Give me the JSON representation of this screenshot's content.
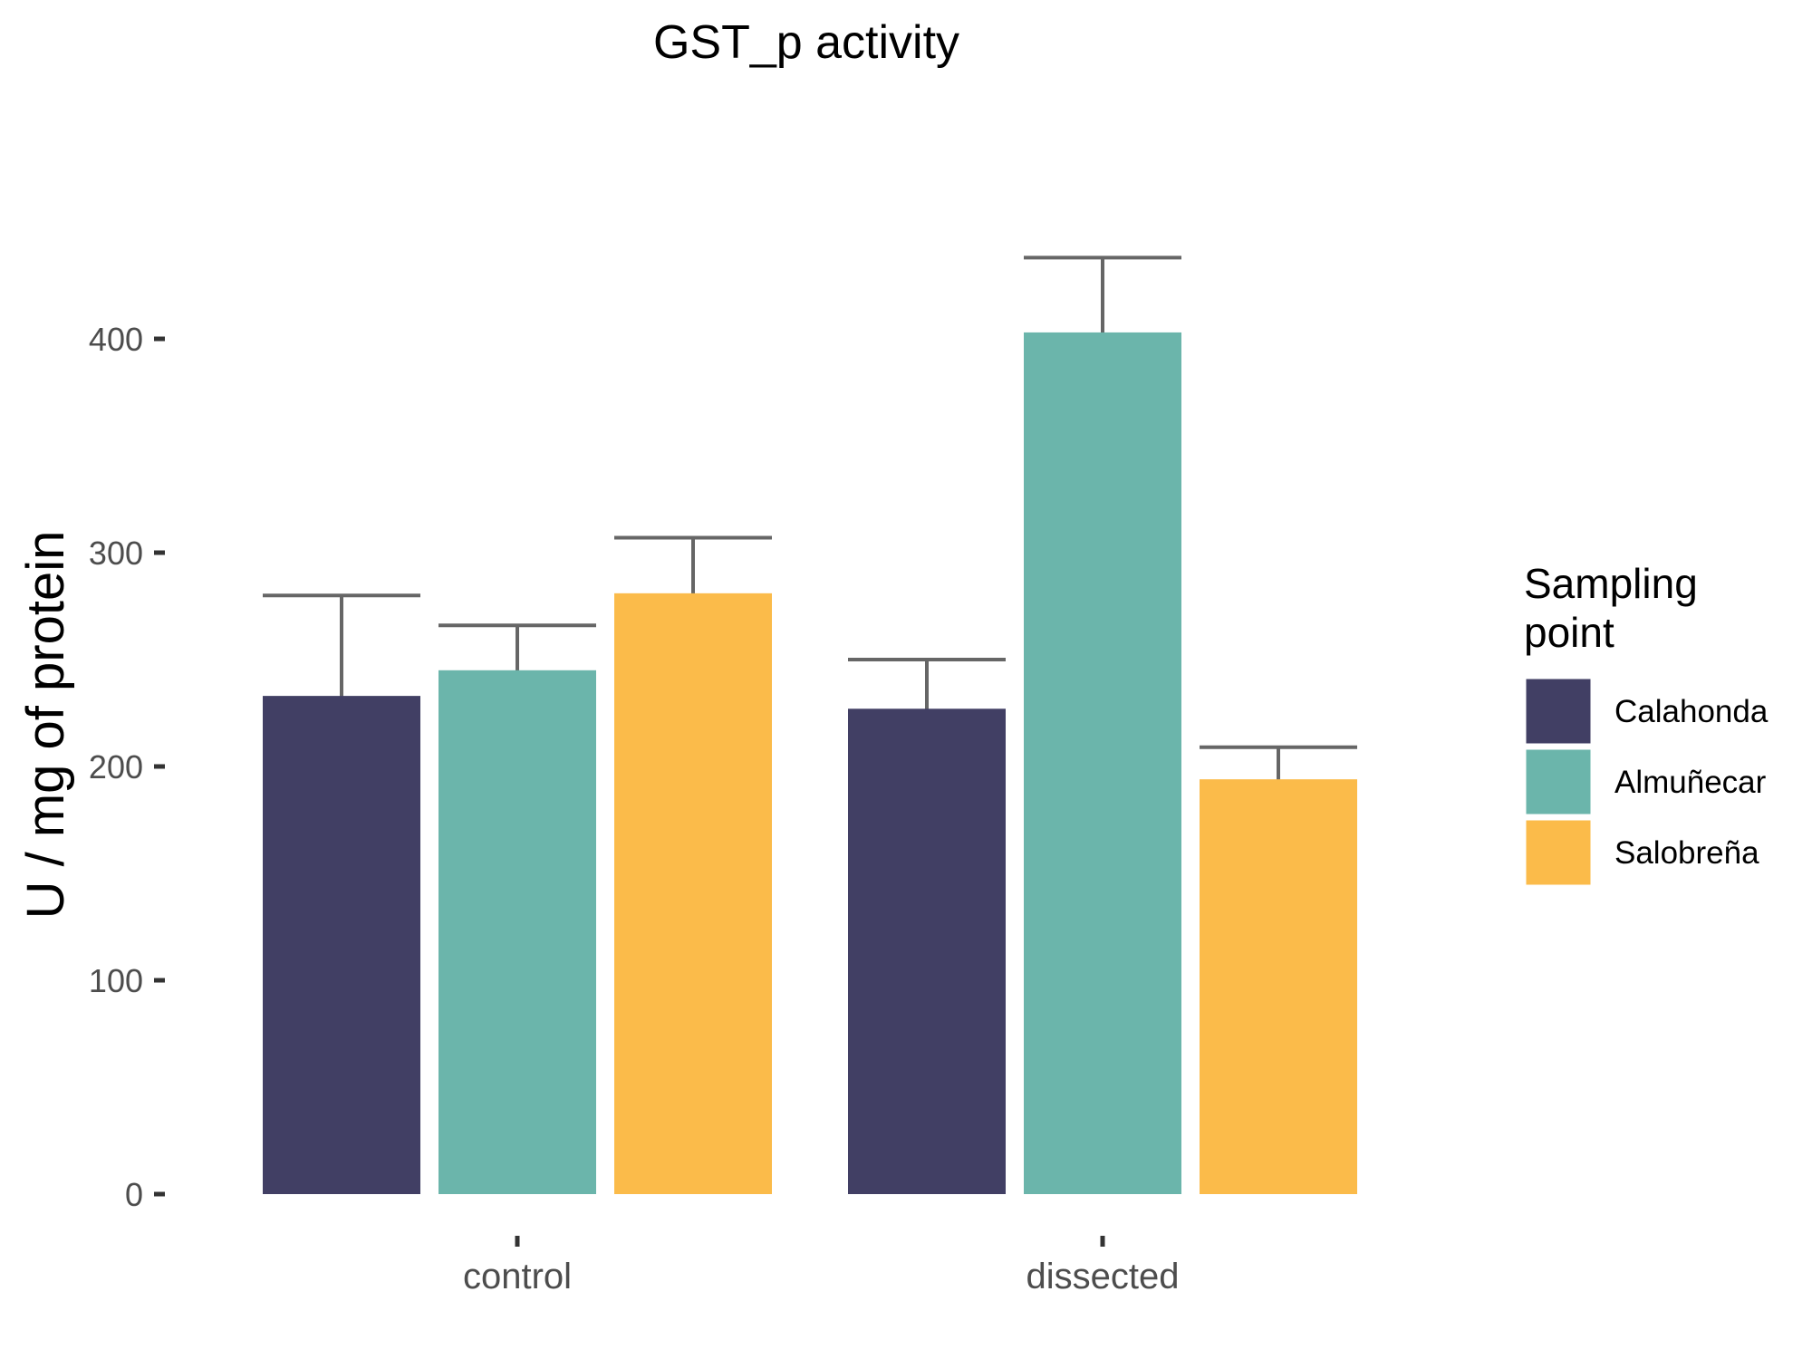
{
  "chart_data": {
    "type": "bar",
    "title": "GST_p activity",
    "xlabel": "",
    "ylabel": "U / mg  of protein",
    "categories": [
      "control",
      "dissected"
    ],
    "series": [
      {
        "name": "Calahonda",
        "color": "#413F64",
        "values": [
          233,
          227
        ],
        "errors": [
          47,
          23
        ]
      },
      {
        "name": "Almuñecar",
        "color": "#6BB5AB",
        "values": [
          245,
          403
        ],
        "errors": [
          21,
          35
        ]
      },
      {
        "name": "Salobreña",
        "color": "#FBBB4A",
        "values": [
          281,
          194
        ],
        "errors": [
          26,
          15
        ]
      }
    ],
    "ylim": [
      0,
      400
    ],
    "yticks": [
      0,
      100,
      200,
      300,
      400
    ],
    "grid": false,
    "legend": {
      "title": "Sampling\npoint",
      "position": "right"
    }
  }
}
